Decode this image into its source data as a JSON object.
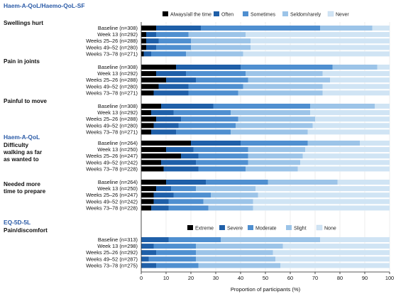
{
  "colors": {
    "title_blue": "#2b5ba7",
    "always": "#000000",
    "often": "#1f5fa8",
    "sometimes": "#4f8fd0",
    "seldom": "#9cc4e8",
    "never": "#d0e4f4",
    "grid": "#e3e3e3",
    "axis": "#222222"
  },
  "figure": {
    "xlabel": "Proportion of participants (%)",
    "ticks": [
      "0",
      "10",
      "20",
      "30",
      "40",
      "50",
      "60",
      "70",
      "80",
      "90",
      "100"
    ]
  },
  "chart_data": [
    {
      "type": "bar",
      "orientation": "horizontal",
      "stacked": true,
      "title": "Haem-A-QoL/Haemo-QoL-SF",
      "xlabel": "",
      "xlim": [
        0,
        100
      ],
      "legend": [
        "Always/all the time",
        "Often",
        "Sometimes",
        "Seldom/rarely",
        "Never"
      ],
      "legend_position": "top-right",
      "groups": [
        {
          "label": "Swellings hurt",
          "categories": [
            "Baseline (n=308)",
            "Week 13 (n=292)",
            "Weeks 25–26 (n=288)",
            "Weeks 49–52 (n=280)",
            "Weeks 73–78 (n=271)"
          ],
          "series": [
            {
              "name": "Always/all the time",
              "values": [
                6,
                2,
                2,
                2,
                1
              ]
            },
            {
              "name": "Often",
              "values": [
                18,
                4,
                5,
                4,
                3
              ]
            },
            {
              "name": "Sometimes",
              "values": [
                48,
                13,
                13,
                14,
                14
              ]
            },
            {
              "name": "Seldom/rarely",
              "values": [
                21,
                23,
                24,
                24,
                23
              ]
            },
            {
              "name": "Never",
              "values": [
                7,
                58,
                56,
                56,
                59
              ]
            }
          ]
        },
        {
          "label": "Pain in joints",
          "categories": [
            "Baseline (n=308)",
            "Week 13 (n=292)",
            "Weeks 25–26 (n=288)",
            "Weeks 49–52 (n=280)",
            "Weeks 73–78 (n=271)"
          ],
          "series": [
            {
              "name": "Always/all the time",
              "values": [
                14,
                6,
                10,
                7,
                5
              ]
            },
            {
              "name": "Often",
              "values": [
                26,
                12,
                12,
                12,
                14
              ]
            },
            {
              "name": "Sometimes",
              "values": [
                37,
                24,
                21,
                22,
                20
              ]
            },
            {
              "name": "Seldom/rarely",
              "values": [
                18,
                31,
                33,
                32,
                34
              ]
            },
            {
              "name": "Never",
              "values": [
                5,
                27,
                24,
                27,
                27
              ]
            }
          ]
        },
        {
          "label": "Painful to move",
          "categories": [
            "Baseline (n=308)",
            "Week 13 (n=292)",
            "Weeks 25–26 (n=288)",
            "Weeks 49–52 (n=280)",
            "Weeks 73–78 (n=271)"
          ],
          "series": [
            {
              "name": "Always/all the time",
              "values": [
                8,
                4,
                6,
                5,
                4
              ]
            },
            {
              "name": "Often",
              "values": [
                21,
                9,
                10,
                10,
                10
              ]
            },
            {
              "name": "Sometimes",
              "values": [
                39,
                23,
                23,
                23,
                22
              ]
            },
            {
              "name": "Seldom/rarely",
              "values": [
                26,
                32,
                31,
                31,
                31
              ]
            },
            {
              "name": "Never",
              "values": [
                6,
                32,
                30,
                31,
                33
              ]
            }
          ]
        },
        {
          "label": "Difficulty walking as far as wanted to",
          "categories": [
            "Baseline (n=264)",
            "Week 13 (n=250)",
            "Weeks 25–26 (n=247)",
            "Weeks 49–52 (n=242)",
            "Weeks 73–78 (n=228)"
          ],
          "series": [
            {
              "name": "Always/all the time",
              "values": [
                20,
                10,
                16,
                8,
                9
              ]
            },
            {
              "name": "Often",
              "values": [
                20,
                11,
                7,
                14,
                14
              ]
            },
            {
              "name": "Sometimes",
              "values": [
                27,
                22,
                20,
                21,
                19
              ]
            },
            {
              "name": "Seldom/rarely",
              "values": [
                21,
                23,
                22,
                21,
                21
              ]
            },
            {
              "name": "Never",
              "values": [
                12,
                34,
                35,
                36,
                37
              ]
            }
          ]
        },
        {
          "label": "Needed more time to prepare",
          "categories": [
            "Baseline (n=264)",
            "Week 13 (n=250)",
            "Weeks 25–26 (n=247)",
            "Weeks 49–52 (n=242)",
            "Weeks 73–78 (n=228)"
          ],
          "series": [
            {
              "name": "Always/all the time",
              "values": [
                10,
                6,
                5,
                5,
                4
              ]
            },
            {
              "name": "Often",
              "values": [
                16,
                6,
                8,
                6,
                7
              ]
            },
            {
              "name": "Sometimes",
              "values": [
                25,
                10,
                15,
                14,
                16
              ]
            },
            {
              "name": "Seldom/rarely",
              "values": [
                28,
                24,
                19,
                20,
                18
              ]
            },
            {
              "name": "Never",
              "values": [
                21,
                54,
                53,
                55,
                55
              ]
            }
          ]
        }
      ],
      "section_labels": [
        {
          "text": "Haem-A-QoL",
          "before_group": 3
        }
      ]
    },
    {
      "type": "bar",
      "orientation": "horizontal",
      "stacked": true,
      "title": "EQ-5D-5L",
      "xlabel": "Proportion of participants (%)",
      "xlim": [
        0,
        100
      ],
      "legend": [
        "Extreme",
        "Severe",
        "Moderate",
        "Slight",
        "None"
      ],
      "legend_position": "top-right",
      "groups": [
        {
          "label": "Pain/discomfort",
          "categories": [
            "Baseline (n=313)",
            "Week 13 (n=298)",
            "Weeks 25–26 (n=292)",
            "Weeks 49–52 (n=287)",
            "Weeks 73–78 (n=275)"
          ],
          "series": [
            {
              "name": "Extreme",
              "values": [
                0,
                0,
                0,
                0,
                0
              ]
            },
            {
              "name": "Severe",
              "values": [
                11,
                5,
                6,
                3,
                6
              ]
            },
            {
              "name": "Moderate",
              "values": [
                21,
                17,
                16,
                19,
                17
              ]
            },
            {
              "name": "Slight",
              "values": [
                40,
                35,
                31,
                32,
                33
              ]
            },
            {
              "name": "None",
              "values": [
                28,
                43,
                47,
                46,
                44
              ]
            }
          ]
        }
      ]
    }
  ]
}
